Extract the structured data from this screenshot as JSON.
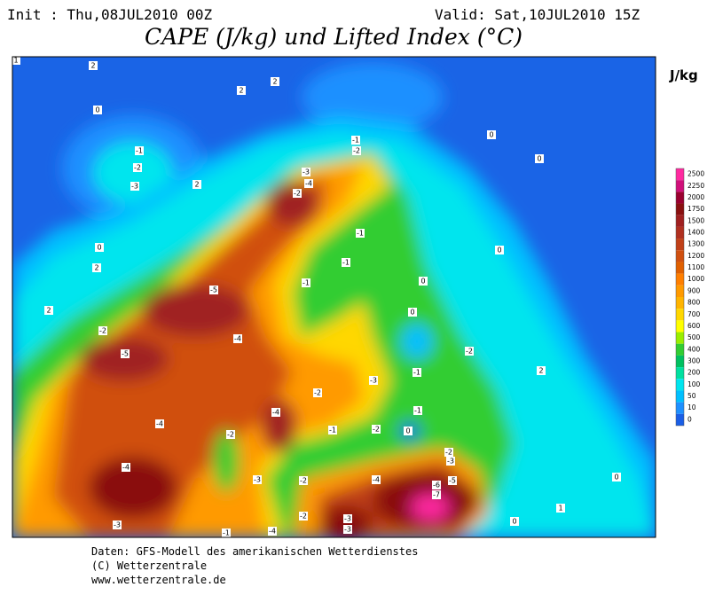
{
  "header": {
    "init": "Init : Thu,08JUL2010 00Z",
    "valid": "Valid: Sat,10JUL2010 15Z",
    "title": "CAPE (J/kg) und Lifted Index (°C)"
  },
  "colorbar": {
    "unit": "J/kg",
    "levels": [
      2500,
      2250,
      2000,
      1750,
      1500,
      1400,
      1300,
      1200,
      1100,
      1000,
      900,
      800,
      700,
      600,
      500,
      400,
      300,
      200,
      100,
      50,
      10,
      0
    ],
    "colors": [
      "#ff2aa0",
      "#d0107a",
      "#9a0030",
      "#8a1010",
      "#a02020",
      "#b03020",
      "#c04018",
      "#d05010",
      "#e06000",
      "#ff7f00",
      "#ff9a00",
      "#ffb400",
      "#ffd700",
      "#ffff00",
      "#9aee00",
      "#32cd32",
      "#00c060",
      "#00e0a0",
      "#00e5ee",
      "#00bfff",
      "#1e90ff",
      "#1a5ee6"
    ]
  },
  "contour_labels": [
    "1",
    "2",
    "2",
    "2",
    "0",
    "-1",
    "-2",
    "-3",
    "2",
    "0",
    "2",
    "2",
    "-2",
    "-5",
    "-4",
    "-5",
    "-4",
    "-4",
    "-3",
    "-2",
    "-3",
    "-4",
    "-3",
    "-2",
    "-4",
    "-1",
    "-2",
    "-1",
    "-1",
    "-1",
    "0",
    "0",
    "-2",
    "-3",
    "-1",
    "-1",
    "-1",
    "-2",
    "0",
    "-2",
    "-3",
    "-4",
    "-6",
    "-5",
    "-7",
    "-3",
    "-3",
    "-2",
    "-2",
    "-4",
    "-1",
    "-2",
    "0",
    "0",
    "0",
    "2",
    "0",
    "1",
    "0"
  ],
  "footer": [
    "Daten: GFS-Modell des amerikanischen Wetterdienstes",
    "(C) Wetterzentrale",
    "www.wetterzentrale.de"
  ]
}
